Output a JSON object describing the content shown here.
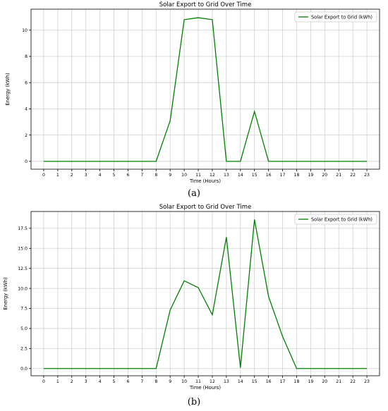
{
  "chart_data": [
    {
      "type": "line",
      "panel_label": "(a)",
      "title": "Solar Export to Grid Over Time",
      "xlabel": "Time (Hours)",
      "ylabel": "Energy (kWh)",
      "x": [
        0,
        1,
        2,
        3,
        4,
        5,
        6,
        7,
        8,
        9,
        10,
        11,
        12,
        13,
        14,
        15,
        16,
        17,
        18,
        19,
        20,
        21,
        22,
        23
      ],
      "series": [
        {
          "name": "Solar Export to Grid (kWh)",
          "color": "#008000",
          "values": [
            0,
            0,
            0,
            0,
            0,
            0,
            0,
            0,
            0,
            3.1,
            10.8,
            10.95,
            10.8,
            0,
            0,
            3.8,
            0,
            0,
            0,
            0,
            0,
            0,
            0,
            0
          ]
        }
      ],
      "xlim": [
        -0.9,
        23.9
      ],
      "ylim": [
        -0.6,
        11.6
      ],
      "xticks": [
        0,
        1,
        2,
        3,
        4,
        5,
        6,
        7,
        8,
        9,
        10,
        11,
        12,
        13,
        14,
        15,
        16,
        17,
        18,
        19,
        20,
        21,
        22,
        23
      ],
      "yticks": [
        0,
        2,
        4,
        6,
        8,
        10
      ],
      "ytick_labels": [
        "0",
        "2",
        "4",
        "6",
        "8",
        "10"
      ],
      "grid": true,
      "legend_position": "top-right"
    },
    {
      "type": "line",
      "panel_label": "(b)",
      "title": "Solar Export to Grid Over Time",
      "xlabel": "Time (Hours)",
      "ylabel": "Energy (kWh)",
      "x": [
        0,
        1,
        2,
        3,
        4,
        5,
        6,
        7,
        8,
        9,
        10,
        11,
        12,
        13,
        14,
        15,
        16,
        17,
        18,
        19,
        20,
        21,
        22,
        23
      ],
      "series": [
        {
          "name": "Solar Export to Grid (kWh)",
          "color": "#008000",
          "values": [
            0,
            0,
            0,
            0,
            0,
            0,
            0,
            0,
            0,
            7.3,
            10.95,
            10.1,
            6.7,
            16.4,
            0.1,
            18.6,
            9.0,
            4.0,
            0,
            0,
            0,
            0,
            0,
            0
          ]
        }
      ],
      "xlim": [
        -0.9,
        23.9
      ],
      "ylim": [
        -0.9,
        19.6
      ],
      "xticks": [
        0,
        1,
        2,
        3,
        4,
        5,
        6,
        7,
        8,
        9,
        10,
        11,
        12,
        13,
        14,
        15,
        16,
        17,
        18,
        19,
        20,
        21,
        22,
        23
      ],
      "yticks": [
        0,
        2.5,
        5,
        7.5,
        10,
        12.5,
        15,
        17.5
      ],
      "ytick_labels": [
        "0.0",
        "2.5",
        "5.0",
        "7.5",
        "10.0",
        "12.5",
        "15.0",
        "17.5"
      ],
      "grid": true,
      "legend_position": "top-right"
    }
  ]
}
